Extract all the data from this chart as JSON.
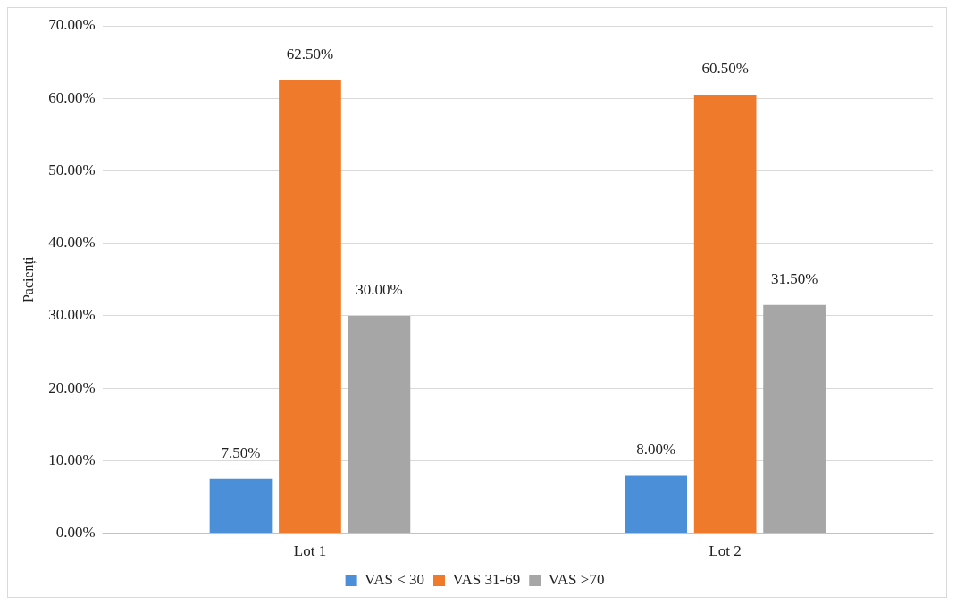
{
  "chart_data": {
    "type": "bar",
    "ylabel": "Pacienți",
    "categories": [
      "Lot 1",
      "Lot 2"
    ],
    "series": [
      {
        "name": "VAS < 30",
        "color": "#4a8fd8",
        "values": [
          7.5,
          8.0
        ],
        "value_labels": [
          "7.50%",
          "8.00%"
        ]
      },
      {
        "name": "VAS 31-69",
        "color": "#f07a2c",
        "values": [
          62.5,
          60.5
        ],
        "value_labels": [
          "62.50%",
          "60.50%"
        ]
      },
      {
        "name": "VAS >70",
        "color": "#a6a6a6",
        "values": [
          30.0,
          31.5
        ],
        "value_labels": [
          "30.00%",
          "31.50%"
        ]
      }
    ],
    "ylim": [
      0,
      70
    ],
    "yticks": [
      {
        "value": 0,
        "label": "0.00%"
      },
      {
        "value": 10,
        "label": "10.00%"
      },
      {
        "value": 20,
        "label": "20.00%"
      },
      {
        "value": 30,
        "label": "30.00%"
      },
      {
        "value": 40,
        "label": "40.00%"
      },
      {
        "value": 50,
        "label": "50.00%"
      },
      {
        "value": 60,
        "label": "60.00%"
      },
      {
        "value": 70,
        "label": "70.00%"
      }
    ],
    "grid": "y",
    "legend": "bottom"
  }
}
